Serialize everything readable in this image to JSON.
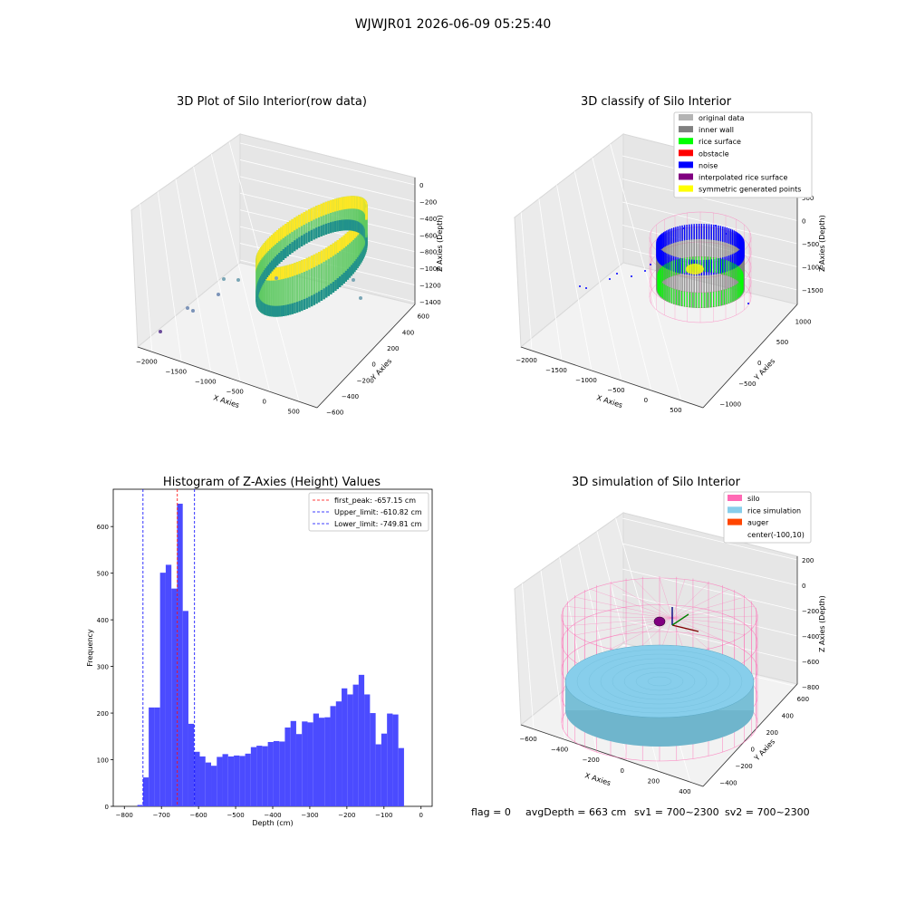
{
  "figure": {
    "suptitle": "WJWJR01 2026-06-09 05:25:40",
    "footer": {
      "flag": "flag = 0",
      "avg_depth": "avgDepth = 663 cm",
      "sv1": "sv1 = 700~2300",
      "sv2": "sv2 = 700~2300"
    }
  },
  "chart_data": [
    {
      "type": "scatter3d",
      "title": "3D Plot of Silo Interior(row data)",
      "xlabel": "X Axies",
      "ylabel": "Y Axies",
      "zlabel": "Z Axies (Depth)",
      "x_ticks": [
        "−2000",
        "−1500",
        "−1000",
        "−500",
        "0",
        "500"
      ],
      "y_ticks": [
        "−600",
        "−400",
        "−200",
        "0",
        "200",
        "400",
        "600"
      ],
      "z_ticks": [
        "0",
        "−200",
        "−400",
        "−600",
        "−800",
        "−1000",
        "−1200",
        "−1400"
      ],
      "colormap": "viridis"
    },
    {
      "type": "scatter3d",
      "title": "3D classify of Silo Interior",
      "xlabel": "X Axies",
      "ylabel": "Y Axies",
      "zlabel": "Z Axies (Depth)",
      "x_ticks": [
        "−2000",
        "−1500",
        "−1000",
        "−500",
        "0",
        "500"
      ],
      "y_ticks": [
        "−1000",
        "−500",
        "0",
        "500",
        "1000"
      ],
      "z_ticks": [
        "500",
        "0",
        "−500",
        "−1000",
        "−1500"
      ],
      "legend": [
        {
          "label": "original data",
          "color": "#b4b4b4"
        },
        {
          "label": "inner wall",
          "color": "#808080"
        },
        {
          "label": "rice surface",
          "color": "#00ff00"
        },
        {
          "label": "obstacle",
          "color": "#ff0000"
        },
        {
          "label": "noise",
          "color": "#0000ff"
        },
        {
          "label": "interpolated rice surface",
          "color": "#800080"
        },
        {
          "label": "symmetric generated points",
          "color": "#ffff00"
        }
      ]
    },
    {
      "type": "bar",
      "title": "Histogram of Z-Axies (Height) Values",
      "xlabel": "Depth (cm)",
      "ylabel": "Frequency",
      "xlim": [
        -830,
        30
      ],
      "ylim": [
        0,
        680
      ],
      "x_ticks": [
        -800,
        -700,
        -600,
        -500,
        -400,
        -300,
        -200,
        -100,
        0
      ],
      "x_tick_labels": [
        "−800",
        "−700",
        "−600",
        "−500",
        "−400",
        "−300",
        "−200",
        "−100",
        "0"
      ],
      "y_ticks": [
        0,
        100,
        200,
        300,
        400,
        500,
        600
      ],
      "bar_color": "#4b4bff",
      "bin_start": -765,
      "bin_width": 15.3,
      "values": [
        3,
        62,
        212,
        212,
        501,
        518,
        467,
        649,
        419,
        177,
        117,
        107,
        94,
        87,
        106,
        112,
        107,
        109,
        108,
        113,
        127,
        130,
        129,
        138,
        140,
        139,
        169,
        183,
        155,
        182,
        180,
        199,
        190,
        191,
        215,
        225,
        253,
        240,
        261,
        282,
        240,
        200,
        133,
        156,
        199,
        197,
        125
      ],
      "vlines": [
        {
          "label": "first_peak: -657.15 cm",
          "x": -657.15,
          "color": "#ff0000"
        },
        {
          "label": "Upper_limit: -610.82 cm",
          "x": -610.82,
          "color": "#0000ff"
        },
        {
          "label": "Lower_limit: -749.81 cm",
          "x": -749.81,
          "color": "#0000ff"
        }
      ]
    },
    {
      "type": "surface3d",
      "title": "3D simulation of Silo Interior",
      "xlabel": "X Axies",
      "ylabel": "Y Axies",
      "zlabel": "Z Axies (Depth)",
      "x_ticks": [
        "−600",
        "−400",
        "−200",
        "0",
        "200",
        "400"
      ],
      "y_ticks": [
        "−400",
        "−200",
        "0",
        "200",
        "400",
        "600"
      ],
      "z_ticks": [
        "200",
        "0",
        "−200",
        "−400",
        "−600",
        "−800"
      ],
      "legend": [
        {
          "label": "silo",
          "color": "#ff69b4"
        },
        {
          "label": "rice simulation",
          "color": "#87ceeb"
        },
        {
          "label": "auger",
          "color": "#ff4500"
        },
        {
          "label": "center(-100,10)",
          "color": "none"
        }
      ]
    }
  ]
}
